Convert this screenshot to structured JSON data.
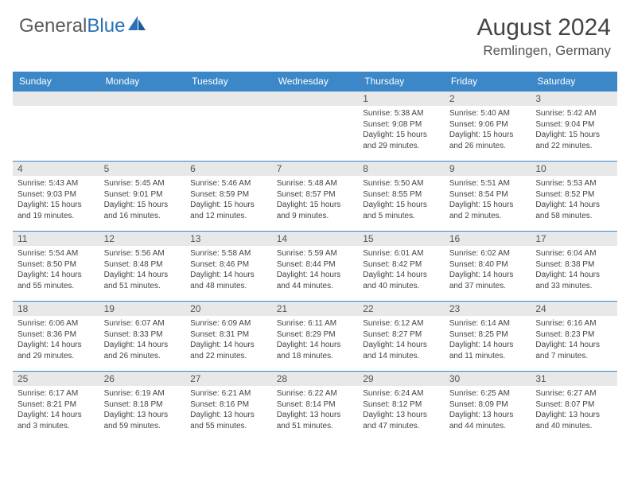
{
  "logo": {
    "text1": "General",
    "text2": "Blue"
  },
  "title": "August 2024",
  "location": "Remlingen, Germany",
  "colors": {
    "header_bg": "#3b87c8",
    "header_fg": "#ffffff",
    "daynum_bg": "#e8e8e8",
    "border": "#3b87c8",
    "text": "#444444",
    "logo_gray": "#5a5a5a",
    "logo_blue": "#2a71b8"
  },
  "daysOfWeek": [
    "Sunday",
    "Monday",
    "Tuesday",
    "Wednesday",
    "Thursday",
    "Friday",
    "Saturday"
  ],
  "weeks": [
    [
      {
        "n": "",
        "sr": "",
        "ss": "",
        "dl": ""
      },
      {
        "n": "",
        "sr": "",
        "ss": "",
        "dl": ""
      },
      {
        "n": "",
        "sr": "",
        "ss": "",
        "dl": ""
      },
      {
        "n": "",
        "sr": "",
        "ss": "",
        "dl": ""
      },
      {
        "n": "1",
        "sr": "Sunrise: 5:38 AM",
        "ss": "Sunset: 9:08 PM",
        "dl": "Daylight: 15 hours and 29 minutes."
      },
      {
        "n": "2",
        "sr": "Sunrise: 5:40 AM",
        "ss": "Sunset: 9:06 PM",
        "dl": "Daylight: 15 hours and 26 minutes."
      },
      {
        "n": "3",
        "sr": "Sunrise: 5:42 AM",
        "ss": "Sunset: 9:04 PM",
        "dl": "Daylight: 15 hours and 22 minutes."
      }
    ],
    [
      {
        "n": "4",
        "sr": "Sunrise: 5:43 AM",
        "ss": "Sunset: 9:03 PM",
        "dl": "Daylight: 15 hours and 19 minutes."
      },
      {
        "n": "5",
        "sr": "Sunrise: 5:45 AM",
        "ss": "Sunset: 9:01 PM",
        "dl": "Daylight: 15 hours and 16 minutes."
      },
      {
        "n": "6",
        "sr": "Sunrise: 5:46 AM",
        "ss": "Sunset: 8:59 PM",
        "dl": "Daylight: 15 hours and 12 minutes."
      },
      {
        "n": "7",
        "sr": "Sunrise: 5:48 AM",
        "ss": "Sunset: 8:57 PM",
        "dl": "Daylight: 15 hours and 9 minutes."
      },
      {
        "n": "8",
        "sr": "Sunrise: 5:50 AM",
        "ss": "Sunset: 8:55 PM",
        "dl": "Daylight: 15 hours and 5 minutes."
      },
      {
        "n": "9",
        "sr": "Sunrise: 5:51 AM",
        "ss": "Sunset: 8:54 PM",
        "dl": "Daylight: 15 hours and 2 minutes."
      },
      {
        "n": "10",
        "sr": "Sunrise: 5:53 AM",
        "ss": "Sunset: 8:52 PM",
        "dl": "Daylight: 14 hours and 58 minutes."
      }
    ],
    [
      {
        "n": "11",
        "sr": "Sunrise: 5:54 AM",
        "ss": "Sunset: 8:50 PM",
        "dl": "Daylight: 14 hours and 55 minutes."
      },
      {
        "n": "12",
        "sr": "Sunrise: 5:56 AM",
        "ss": "Sunset: 8:48 PM",
        "dl": "Daylight: 14 hours and 51 minutes."
      },
      {
        "n": "13",
        "sr": "Sunrise: 5:58 AM",
        "ss": "Sunset: 8:46 PM",
        "dl": "Daylight: 14 hours and 48 minutes."
      },
      {
        "n": "14",
        "sr": "Sunrise: 5:59 AM",
        "ss": "Sunset: 8:44 PM",
        "dl": "Daylight: 14 hours and 44 minutes."
      },
      {
        "n": "15",
        "sr": "Sunrise: 6:01 AM",
        "ss": "Sunset: 8:42 PM",
        "dl": "Daylight: 14 hours and 40 minutes."
      },
      {
        "n": "16",
        "sr": "Sunrise: 6:02 AM",
        "ss": "Sunset: 8:40 PM",
        "dl": "Daylight: 14 hours and 37 minutes."
      },
      {
        "n": "17",
        "sr": "Sunrise: 6:04 AM",
        "ss": "Sunset: 8:38 PM",
        "dl": "Daylight: 14 hours and 33 minutes."
      }
    ],
    [
      {
        "n": "18",
        "sr": "Sunrise: 6:06 AM",
        "ss": "Sunset: 8:36 PM",
        "dl": "Daylight: 14 hours and 29 minutes."
      },
      {
        "n": "19",
        "sr": "Sunrise: 6:07 AM",
        "ss": "Sunset: 8:33 PM",
        "dl": "Daylight: 14 hours and 26 minutes."
      },
      {
        "n": "20",
        "sr": "Sunrise: 6:09 AM",
        "ss": "Sunset: 8:31 PM",
        "dl": "Daylight: 14 hours and 22 minutes."
      },
      {
        "n": "21",
        "sr": "Sunrise: 6:11 AM",
        "ss": "Sunset: 8:29 PM",
        "dl": "Daylight: 14 hours and 18 minutes."
      },
      {
        "n": "22",
        "sr": "Sunrise: 6:12 AM",
        "ss": "Sunset: 8:27 PM",
        "dl": "Daylight: 14 hours and 14 minutes."
      },
      {
        "n": "23",
        "sr": "Sunrise: 6:14 AM",
        "ss": "Sunset: 8:25 PM",
        "dl": "Daylight: 14 hours and 11 minutes."
      },
      {
        "n": "24",
        "sr": "Sunrise: 6:16 AM",
        "ss": "Sunset: 8:23 PM",
        "dl": "Daylight: 14 hours and 7 minutes."
      }
    ],
    [
      {
        "n": "25",
        "sr": "Sunrise: 6:17 AM",
        "ss": "Sunset: 8:21 PM",
        "dl": "Daylight: 14 hours and 3 minutes."
      },
      {
        "n": "26",
        "sr": "Sunrise: 6:19 AM",
        "ss": "Sunset: 8:18 PM",
        "dl": "Daylight: 13 hours and 59 minutes."
      },
      {
        "n": "27",
        "sr": "Sunrise: 6:21 AM",
        "ss": "Sunset: 8:16 PM",
        "dl": "Daylight: 13 hours and 55 minutes."
      },
      {
        "n": "28",
        "sr": "Sunrise: 6:22 AM",
        "ss": "Sunset: 8:14 PM",
        "dl": "Daylight: 13 hours and 51 minutes."
      },
      {
        "n": "29",
        "sr": "Sunrise: 6:24 AM",
        "ss": "Sunset: 8:12 PM",
        "dl": "Daylight: 13 hours and 47 minutes."
      },
      {
        "n": "30",
        "sr": "Sunrise: 6:25 AM",
        "ss": "Sunset: 8:09 PM",
        "dl": "Daylight: 13 hours and 44 minutes."
      },
      {
        "n": "31",
        "sr": "Sunrise: 6:27 AM",
        "ss": "Sunset: 8:07 PM",
        "dl": "Daylight: 13 hours and 40 minutes."
      }
    ]
  ]
}
